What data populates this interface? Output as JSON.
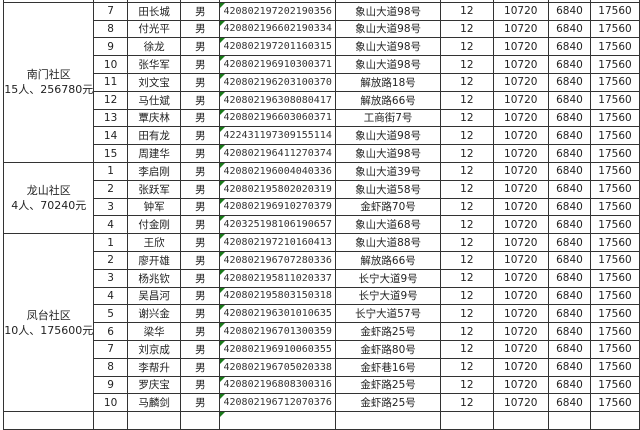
{
  "groups": [
    {
      "name": "南门社区",
      "summary": "15人、256780元",
      "rows": [
        [
          "7",
          "田长城",
          "男",
          "420802197202190356",
          "象山大道98号",
          "12",
          "10720",
          "6840",
          "17560"
        ],
        [
          "8",
          "付光平",
          "男",
          "420802196602190334",
          "象山大道98号",
          "12",
          "10720",
          "6840",
          "17560"
        ],
        [
          "9",
          "徐龙",
          "男",
          "420802197201160315",
          "象山大道98号",
          "12",
          "10720",
          "6840",
          "17560"
        ],
        [
          "10",
          "张华军",
          "男",
          "420802196910300371",
          "象山大道98号",
          "12",
          "10720",
          "6840",
          "17560"
        ],
        [
          "11",
          "刘文宝",
          "男",
          "420802196203100370",
          "解放路18号",
          "12",
          "10720",
          "6840",
          "17560"
        ],
        [
          "12",
          "马仕斌",
          "男",
          "420802196308080417",
          "解放路66号",
          "12",
          "10720",
          "6840",
          "17560"
        ],
        [
          "13",
          "覃庆林",
          "男",
          "420802196603060371",
          "工商街7号",
          "12",
          "10720",
          "6840",
          "17560"
        ],
        [
          "14",
          "田有龙",
          "男",
          "422431197309155114",
          "象山大道98号",
          "12",
          "10720",
          "6840",
          "17560"
        ],
        [
          "15",
          "周建华",
          "男",
          "420802196411270374",
          "象山大道98号",
          "12",
          "10720",
          "6840",
          "17560"
        ]
      ]
    },
    {
      "name": "龙山社区",
      "summary": "4人、70240元",
      "rows": [
        [
          "1",
          "李启刚",
          "男",
          "420802196004040336",
          "象山大道39号",
          "12",
          "10720",
          "6840",
          "17560"
        ],
        [
          "2",
          "张跃军",
          "男",
          "420802195802020319",
          "象山大道58号",
          "12",
          "10720",
          "6840",
          "17560"
        ],
        [
          "3",
          "钟军",
          "男",
          "420802196910270379",
          "金虾路70号",
          "12",
          "10720",
          "6840",
          "17560"
        ],
        [
          "4",
          "付金刚",
          "男",
          "420325198106190657",
          "象山大道68号",
          "12",
          "10720",
          "6840",
          "17560"
        ]
      ]
    },
    {
      "name": "凤台社区",
      "summary": "10人、175600元",
      "rows": [
        [
          "1",
          "王欣",
          "男",
          "420802197210160413",
          "象山大道88号",
          "12",
          "10720",
          "6840",
          "17560"
        ],
        [
          "2",
          "廖开雄",
          "男",
          "420802196707280336",
          "解放路66号",
          "12",
          "10720",
          "6840",
          "17560"
        ],
        [
          "3",
          "杨兆钦",
          "男",
          "420802195811020337",
          "长宁大道9号",
          "12",
          "10720",
          "6840",
          "17560"
        ],
        [
          "4",
          "吴昌河",
          "男",
          "420802195803150318",
          "长宁大道9号",
          "12",
          "10720",
          "6840",
          "17560"
        ],
        [
          "5",
          "谢兴金",
          "男",
          "420802196301010635",
          "长宁大道57号",
          "12",
          "10720",
          "6840",
          "17560"
        ],
        [
          "6",
          "梁华",
          "男",
          "420802196701300359",
          "金虾路25号",
          "12",
          "10720",
          "6840",
          "17560"
        ],
        [
          "7",
          "刘京成",
          "男",
          "420802196910060355",
          "金虾路80号",
          "12",
          "10720",
          "6840",
          "17560"
        ],
        [
          "8",
          "李帮升",
          "男",
          "420802196705020338",
          "金虾巷16号",
          "12",
          "10720",
          "6840",
          "17560"
        ],
        [
          "9",
          "罗庆宝",
          "男",
          "420802196808300316",
          "金虾路25号",
          "12",
          "10720",
          "6840",
          "17560"
        ],
        [
          "10",
          "马麟剑",
          "男",
          "420802196712070376",
          "金虾路25号",
          "12",
          "10720",
          "6840",
          "17560"
        ]
      ]
    }
  ]
}
